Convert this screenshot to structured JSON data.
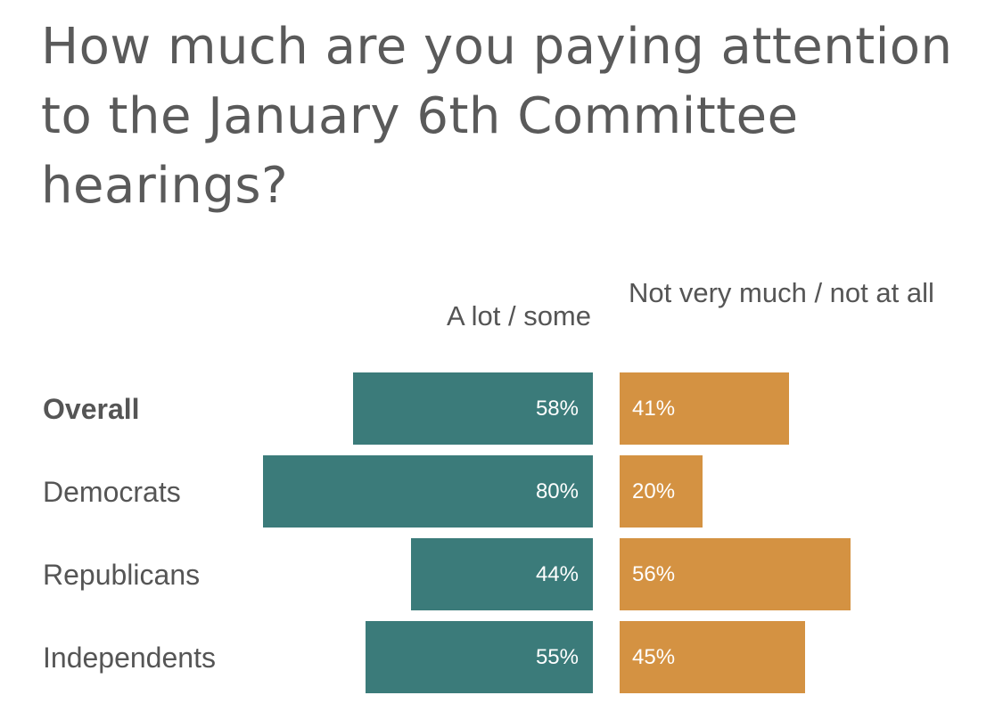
{
  "chart_data": {
    "type": "bar",
    "orientation": "horizontal-diverging",
    "title": "How much are you paying attention to the January 6th Committee hearings?",
    "categories": [
      "Overall",
      "Democrats",
      "Republicans",
      "Independents"
    ],
    "category_emphasis": [
      "Overall"
    ],
    "series": [
      {
        "name": "A lot / some",
        "color": "#3b7b7a",
        "values": [
          58,
          80,
          44,
          55
        ],
        "labels": [
          "58%",
          "80%",
          "44%",
          "55%"
        ]
      },
      {
        "name": "Not very much / not at all",
        "color": "#d49242",
        "values": [
          41,
          20,
          56,
          45
        ],
        "labels": [
          "41%",
          "20%",
          "56%",
          "45%"
        ]
      }
    ],
    "unit": "%",
    "xlim": [
      0,
      100
    ],
    "grid": false,
    "legend": "column headers above bars"
  }
}
